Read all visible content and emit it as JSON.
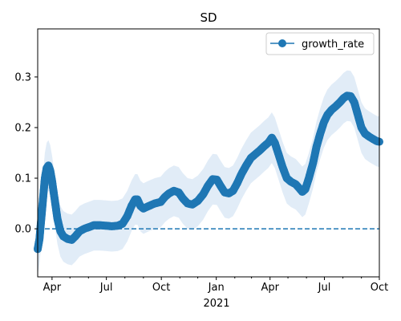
{
  "chart_data": {
    "type": "line",
    "title": "SD",
    "xlabel": "",
    "ylabel": "",
    "year_label": "2021",
    "x_tick_labels": [
      "Apr",
      "Jul",
      "Oct",
      "Jan",
      "Apr",
      "Jul",
      "Oct"
    ],
    "x_tick_dates": [
      "2020-04-01",
      "2020-07-01",
      "2020-10-01",
      "2021-01-01",
      "2021-04-01",
      "2021-07-01",
      "2021-10-01"
    ],
    "y_ticks": [
      0.0,
      0.1,
      0.2,
      0.3
    ],
    "y_tick_labels": [
      "0.0",
      "0.1",
      "0.2",
      "0.3"
    ],
    "xlim": [
      "2020-03-08",
      "2021-10-01"
    ],
    "ylim": [
      -0.095,
      0.395
    ],
    "legend_position": "top-right",
    "reference_line": {
      "y": 0.0,
      "style": "dashed"
    },
    "colors": {
      "line": "#1f77b4",
      "band": "#dce9f6"
    },
    "series": [
      {
        "name": "growth_rate",
        "band_width": 0.05,
        "points": [
          [
            "2020-03-08",
            -0.04
          ],
          [
            "2020-03-11",
            -0.02
          ],
          [
            "2020-03-14",
            0.02
          ],
          [
            "2020-03-17",
            0.06
          ],
          [
            "2020-03-20",
            0.1
          ],
          [
            "2020-03-23",
            0.12
          ],
          [
            "2020-03-26",
            0.125
          ],
          [
            "2020-03-29",
            0.115
          ],
          [
            "2020-04-01",
            0.095
          ],
          [
            "2020-04-04",
            0.07
          ],
          [
            "2020-04-07",
            0.045
          ],
          [
            "2020-04-10",
            0.02
          ],
          [
            "2020-04-15",
            -0.005
          ],
          [
            "2020-04-20",
            -0.015
          ],
          [
            "2020-04-27",
            -0.02
          ],
          [
            "2020-05-04",
            -0.022
          ],
          [
            "2020-05-10",
            -0.015
          ],
          [
            "2020-05-17",
            -0.005
          ],
          [
            "2020-05-25",
            0.0
          ],
          [
            "2020-06-01",
            0.003
          ],
          [
            "2020-06-10",
            0.007
          ],
          [
            "2020-06-20",
            0.007
          ],
          [
            "2020-07-01",
            0.006
          ],
          [
            "2020-07-10",
            0.005
          ],
          [
            "2020-07-20",
            0.006
          ],
          [
            "2020-07-28",
            0.01
          ],
          [
            "2020-08-05",
            0.025
          ],
          [
            "2020-08-12",
            0.045
          ],
          [
            "2020-08-18",
            0.058
          ],
          [
            "2020-08-22",
            0.058
          ],
          [
            "2020-08-27",
            0.045
          ],
          [
            "2020-09-01",
            0.04
          ],
          [
            "2020-09-10",
            0.045
          ],
          [
            "2020-09-20",
            0.05
          ],
          [
            "2020-09-30",
            0.053
          ],
          [
            "2020-10-07",
            0.063
          ],
          [
            "2020-10-14",
            0.07
          ],
          [
            "2020-10-22",
            0.075
          ],
          [
            "2020-10-30",
            0.072
          ],
          [
            "2020-11-06",
            0.06
          ],
          [
            "2020-11-14",
            0.05
          ],
          [
            "2020-11-22",
            0.048
          ],
          [
            "2020-12-01",
            0.055
          ],
          [
            "2020-12-10",
            0.068
          ],
          [
            "2020-12-18",
            0.085
          ],
          [
            "2020-12-26",
            0.098
          ],
          [
            "2021-01-02",
            0.097
          ],
          [
            "2021-01-08",
            0.085
          ],
          [
            "2021-01-15",
            0.072
          ],
          [
            "2021-01-22",
            0.07
          ],
          [
            "2021-01-29",
            0.075
          ],
          [
            "2021-02-05",
            0.09
          ],
          [
            "2021-02-12",
            0.108
          ],
          [
            "2021-02-20",
            0.125
          ],
          [
            "2021-02-28",
            0.14
          ],
          [
            "2021-03-08",
            0.148
          ],
          [
            "2021-03-15",
            0.155
          ],
          [
            "2021-03-22",
            0.163
          ],
          [
            "2021-03-29",
            0.17
          ],
          [
            "2021-04-04",
            0.18
          ],
          [
            "2021-04-09",
            0.17
          ],
          [
            "2021-04-15",
            0.148
          ],
          [
            "2021-04-22",
            0.122
          ],
          [
            "2021-04-29",
            0.1
          ],
          [
            "2021-05-06",
            0.093
          ],
          [
            "2021-05-14",
            0.088
          ],
          [
            "2021-05-20",
            0.08
          ],
          [
            "2021-05-25",
            0.073
          ],
          [
            "2021-05-30",
            0.078
          ],
          [
            "2021-06-05",
            0.1
          ],
          [
            "2021-06-12",
            0.13
          ],
          [
            "2021-06-18",
            0.163
          ],
          [
            "2021-06-24",
            0.188
          ],
          [
            "2021-06-30",
            0.21
          ],
          [
            "2021-07-06",
            0.225
          ],
          [
            "2021-07-13",
            0.235
          ],
          [
            "2021-07-20",
            0.242
          ],
          [
            "2021-07-27",
            0.25
          ],
          [
            "2021-08-02",
            0.258
          ],
          [
            "2021-08-08",
            0.263
          ],
          [
            "2021-08-14",
            0.262
          ],
          [
            "2021-08-20",
            0.25
          ],
          [
            "2021-08-26",
            0.225
          ],
          [
            "2021-09-01",
            0.2
          ],
          [
            "2021-09-07",
            0.188
          ],
          [
            "2021-09-14",
            0.182
          ],
          [
            "2021-09-21",
            0.177
          ],
          [
            "2021-09-27",
            0.173
          ],
          [
            "2021-10-01",
            0.172
          ]
        ]
      }
    ]
  }
}
